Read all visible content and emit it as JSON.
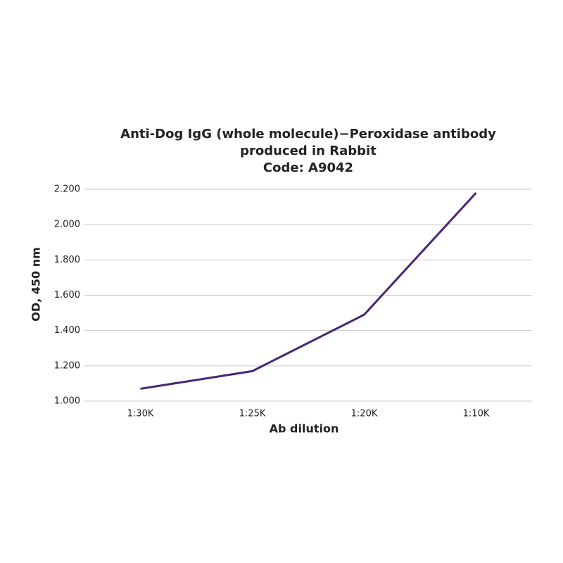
{
  "chart_data": {
    "type": "line",
    "title": [
      "Anti-Dog IgG (whole molecule)−Peroxidase antibody",
      "produced in Rabbit",
      "Code: A9042"
    ],
    "x_label": "Ab dilution",
    "y_label": "OD, 450 nm",
    "categories": [
      "1:30K",
      "1:25K",
      "1:20K",
      "1:10K"
    ],
    "values": [
      1.07,
      1.17,
      1.49,
      2.18
    ],
    "color": "#4a2573",
    "ylim": [
      1.0,
      2.2
    ],
    "yticks": [
      {
        "value": 1.0,
        "label": "1.000"
      },
      {
        "value": 1.2,
        "label": "1.200"
      },
      {
        "value": 1.4,
        "label": "1.400"
      },
      {
        "value": 1.6,
        "label": "1.600"
      },
      {
        "value": 1.8,
        "label": "1.800"
      },
      {
        "value": 2.0,
        "label": "2.000"
      },
      {
        "value": 2.2,
        "label": "2.200"
      }
    ],
    "grid": true
  }
}
